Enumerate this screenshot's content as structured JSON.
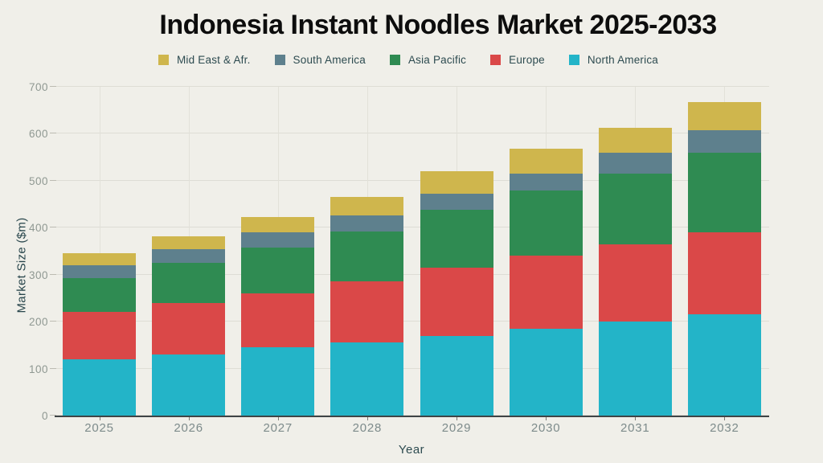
{
  "title": "Indonesia Instant Noodles Market 2025-2033",
  "chart_data": {
    "type": "bar",
    "stacked": true,
    "title": "Indonesia Instant Noodles Market 2025-2033",
    "xlabel": "Year",
    "ylabel": "Market Size ($m)",
    "ylim": [
      0,
      700
    ],
    "yticks": [
      0,
      100,
      200,
      300,
      400,
      500,
      600,
      700
    ],
    "grid": true,
    "legend_position": "top",
    "categories": [
      "2025",
      "2026",
      "2027",
      "2028",
      "2029",
      "2030",
      "2031",
      "2032"
    ],
    "series": [
      {
        "name": "North America",
        "color": "#23b4c8",
        "values": [
          120,
          130,
          145,
          155,
          170,
          185,
          200,
          215
        ]
      },
      {
        "name": "Europe",
        "color": "#da4848",
        "values": [
          100,
          110,
          115,
          130,
          145,
          155,
          165,
          175
        ]
      },
      {
        "name": "Asia Pacific",
        "color": "#2f8b52",
        "values": [
          73,
          85,
          97,
          107,
          123,
          140,
          150,
          170
        ]
      },
      {
        "name": "South America",
        "color": "#5e808d",
        "values": [
          27,
          30,
          33,
          34,
          35,
          36,
          45,
          47
        ]
      },
      {
        "name": "Mid East & Afr.",
        "color": "#cfb64d",
        "values": [
          25,
          27,
          32,
          39,
          47,
          52,
          53,
          60
        ]
      }
    ],
    "totals": [
      345,
      382,
      422,
      465,
      520,
      568,
      613,
      667
    ],
    "legend_items": [
      "Mid East & Afr.",
      "South America",
      "Asia Pacific",
      "Europe",
      "North America"
    ]
  },
  "colors": {
    "background": "#f0efe9",
    "grid": "#deddd5",
    "axis_line": "#3f4446",
    "ytick_text": "#8f9892",
    "xtick_text": "#7d8b8b",
    "dark_text": "#2d4b50",
    "title_text": "#0d0d0d"
  }
}
